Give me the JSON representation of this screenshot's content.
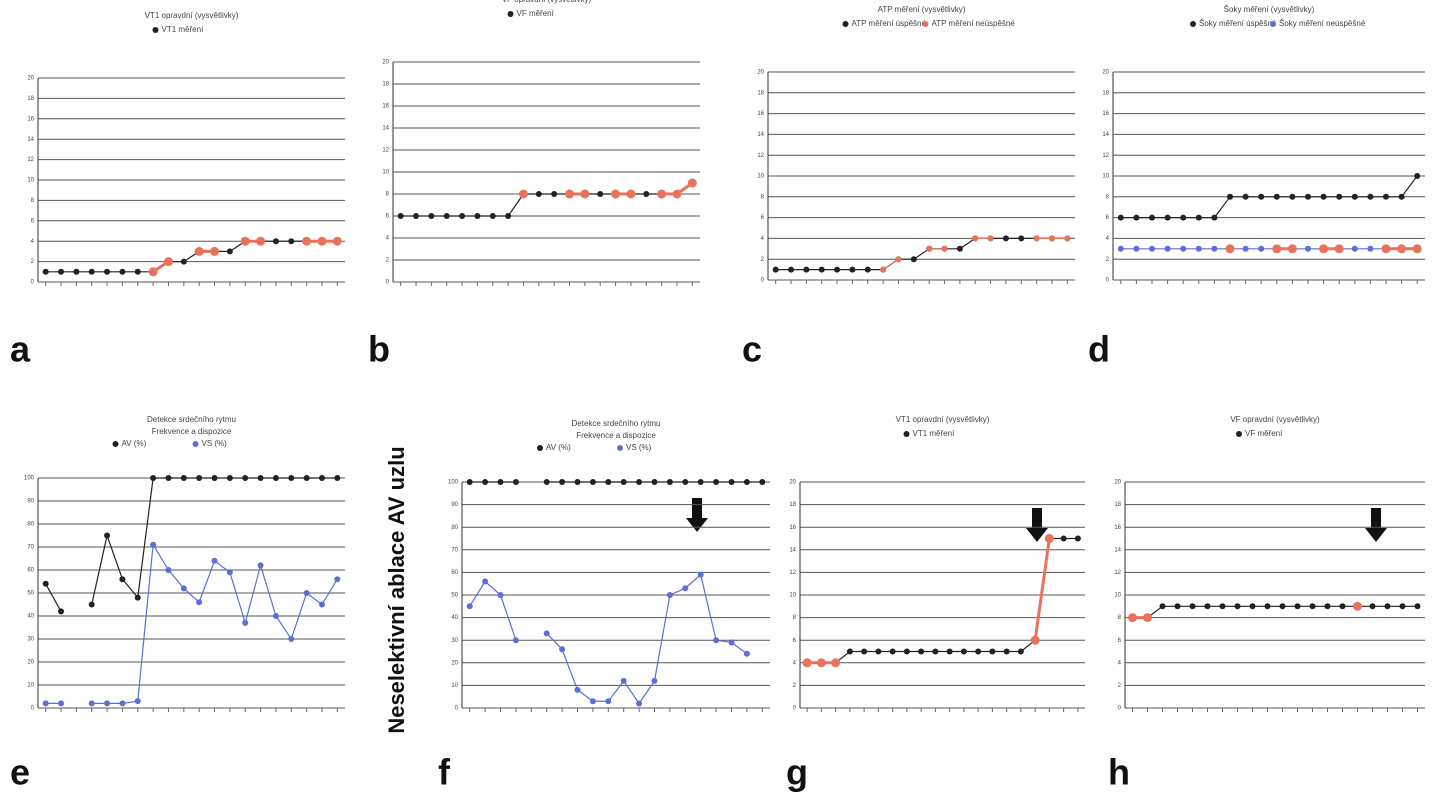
{
  "annotation": "Neselektivní ablace AV uzlu",
  "chart_data": [
    {
      "type": "line",
      "panel": "a",
      "title": "VT1 opravdní (vysvětlivky)",
      "ylim": [
        0,
        20
      ],
      "yticks": [
        0,
        2,
        4,
        6,
        8,
        10,
        12,
        14,
        16,
        18,
        20
      ],
      "grid": true,
      "categories": [
        null,
        null,
        null,
        null,
        null,
        null,
        null,
        null,
        null,
        null,
        null,
        null,
        null,
        null,
        null,
        null,
        null,
        null,
        null,
        null
      ],
      "series": [
        {
          "name": "VT1 měření",
          "color": "#222222",
          "values": [
            1,
            1,
            1,
            1,
            1,
            1,
            1,
            1,
            2,
            2,
            3,
            3,
            3,
            4,
            4,
            4,
            4,
            4,
            4,
            4
          ]
        },
        {
          "color": "#e8735a",
          "values": [
            null,
            null,
            null,
            null,
            null,
            null,
            null,
            1,
            2,
            null,
            3,
            3,
            null,
            4,
            4,
            null,
            null,
            4,
            4,
            4
          ]
        }
      ]
    },
    {
      "type": "line",
      "panel": "b",
      "title": "VF opravdní (vysvětlivky)",
      "ylim": [
        0,
        20
      ],
      "yticks": [
        0,
        2,
        4,
        6,
        8,
        10,
        12,
        14,
        16,
        18,
        20
      ],
      "grid": true,
      "categories": [
        null,
        null,
        null,
        null,
        null,
        null,
        null,
        null,
        null,
        null,
        null,
        null,
        null,
        null,
        null,
        null,
        null,
        null,
        null,
        null
      ],
      "series": [
        {
          "name": "VF měření",
          "color": "#222222",
          "values": [
            6,
            6,
            6,
            6,
            6,
            6,
            6,
            6,
            8,
            8,
            8,
            8,
            8,
            8,
            8,
            8,
            8,
            8,
            8,
            9
          ]
        },
        {
          "color": "#e8735a",
          "values": [
            null,
            null,
            null,
            null,
            null,
            null,
            null,
            null,
            8,
            null,
            null,
            8,
            8,
            null,
            8,
            8,
            null,
            8,
            8,
            9
          ]
        }
      ]
    },
    {
      "type": "line",
      "panel": "c",
      "title": "ATP měření (vysvětlivky)",
      "ylim": [
        0,
        20
      ],
      "yticks": [
        0,
        2,
        4,
        6,
        8,
        10,
        12,
        14,
        16,
        18,
        20
      ],
      "grid": true,
      "categories": [
        null,
        null,
        null,
        null,
        null,
        null,
        null,
        null,
        null,
        null,
        null,
        null,
        null,
        null,
        null,
        null,
        null,
        null,
        null,
        null
      ],
      "series": [
        {
          "name": "ATP měření úspěšné",
          "color": "#222222",
          "values": [
            1,
            1,
            1,
            1,
            1,
            1,
            1,
            1,
            2,
            2,
            3,
            3,
            3,
            4,
            4,
            4,
            4,
            4,
            4,
            4
          ]
        },
        {
          "name": "ATP měření neúspěšné",
          "color": "#e8735a",
          "values": [
            null,
            null,
            null,
            null,
            null,
            null,
            null,
            1,
            2,
            null,
            3,
            3,
            null,
            4,
            4,
            null,
            null,
            4,
            4,
            4
          ]
        }
      ]
    },
    {
      "type": "line",
      "panel": "d",
      "title": "Šoky měření (vysvětlivky)",
      "ylim": [
        0,
        20
      ],
      "yticks": [
        0,
        2,
        4,
        6,
        8,
        10,
        12,
        14,
        16,
        18,
        20
      ],
      "grid": true,
      "categories": [
        null,
        null,
        null,
        null,
        null,
        null,
        null,
        null,
        null,
        null,
        null,
        null,
        null,
        null,
        null,
        null,
        null,
        null,
        null,
        null
      ],
      "series": [
        {
          "name": "Šoky měření úspěšné",
          "color": "#222222",
          "values": [
            6,
            6,
            6,
            6,
            6,
            6,
            6,
            8,
            8,
            8,
            8,
            8,
            8,
            8,
            8,
            8,
            8,
            8,
            8,
            10
          ]
        },
        {
          "name": "Šoky měření neúspěšné",
          "color": "#5b6fd6",
          "values": [
            3,
            3,
            3,
            3,
            3,
            3,
            3,
            3,
            3,
            3,
            3,
            3,
            3,
            3,
            3,
            3,
            3,
            3,
            3,
            3
          ]
        },
        {
          "color": "#e8735a",
          "values": [
            null,
            null,
            null,
            null,
            null,
            null,
            null,
            3,
            null,
            null,
            3,
            3,
            null,
            3,
            3,
            null,
            null,
            3,
            3,
            3
          ]
        }
      ]
    },
    {
      "type": "line",
      "panel": "e",
      "title": "Detekce srdečního rytmu",
      "subtitle": "Frekvence a dispozice",
      "ylim": [
        0,
        100
      ],
      "yticks": [
        0,
        10,
        20,
        30,
        40,
        50,
        60,
        70,
        80,
        90,
        100
      ],
      "grid": true,
      "categories": [
        null,
        null,
        null,
        null,
        null,
        null,
        null,
        null,
        null,
        null,
        null,
        null,
        null,
        null,
        null,
        null,
        null,
        null,
        null,
        null
      ],
      "series": [
        {
          "name": "AV (%)",
          "color": "#222222",
          "values": [
            54,
            42,
            null,
            45,
            75,
            56,
            48,
            100,
            100,
            100,
            100,
            100,
            100,
            100,
            100,
            100,
            100,
            100,
            100,
            100
          ]
        },
        {
          "name": "VS (%)",
          "color": "#5b6fd6",
          "values": [
            2,
            2,
            null,
            2,
            2,
            2,
            3,
            71,
            60,
            52,
            46,
            64,
            59,
            37,
            62,
            40,
            30,
            50,
            45,
            56
          ]
        }
      ]
    },
    {
      "type": "line",
      "panel": "f",
      "title": "Detekce srdečního rytmu",
      "subtitle": "Frekvence a dispozice",
      "ylim": [
        0,
        100
      ],
      "yticks": [
        0,
        10,
        20,
        30,
        40,
        50,
        60,
        70,
        80,
        90,
        100
      ],
      "grid": true,
      "categories": [
        null,
        null,
        null,
        null,
        null,
        null,
        null,
        null,
        null,
        null,
        null,
        null,
        null,
        null,
        null,
        null,
        null,
        null,
        null,
        null
      ],
      "series": [
        {
          "name": "AV (%)",
          "color": "#222222",
          "values": [
            100,
            100,
            100,
            100,
            null,
            100,
            100,
            100,
            100,
            100,
            100,
            100,
            100,
            100,
            100,
            100,
            100,
            100,
            100,
            100
          ]
        },
        {
          "name": "VS (%)",
          "color": "#5b6fd6",
          "values": [
            45,
            56,
            50,
            30,
            null,
            33,
            26,
            8,
            3,
            3,
            12,
            2,
            12,
            50,
            53,
            59,
            30,
            29,
            24,
            null
          ]
        }
      ]
    },
    {
      "type": "line",
      "panel": "g",
      "title": "VT1 opravdní (vysvětlivky)",
      "ylim": [
        0,
        20
      ],
      "yticks": [
        0,
        2,
        4,
        6,
        8,
        10,
        12,
        14,
        16,
        18,
        20
      ],
      "grid": true,
      "categories": [
        null,
        null,
        null,
        null,
        null,
        null,
        null,
        null,
        null,
        null,
        null,
        null,
        null,
        null,
        null,
        null,
        null,
        null,
        null,
        null
      ],
      "series": [
        {
          "name": "VT1 měření",
          "color": "#222222",
          "values": [
            4,
            4,
            4,
            5,
            5,
            5,
            5,
            5,
            5,
            5,
            5,
            5,
            5,
            5,
            5,
            5,
            6,
            15,
            15,
            15
          ]
        },
        {
          "color": "#e8735a",
          "values": [
            4,
            4,
            4,
            null,
            null,
            null,
            null,
            null,
            null,
            null,
            null,
            null,
            null,
            null,
            null,
            null,
            6,
            15,
            null,
            null
          ]
        }
      ]
    },
    {
      "type": "line",
      "panel": "h",
      "title": "VF opravdní (vysvětlivky)",
      "ylim": [
        0,
        20
      ],
      "yticks": [
        0,
        2,
        4,
        6,
        8,
        10,
        12,
        14,
        16,
        18,
        20
      ],
      "grid": true,
      "categories": [
        null,
        null,
        null,
        null,
        null,
        null,
        null,
        null,
        null,
        null,
        null,
        null,
        null,
        null,
        null,
        null,
        null,
        null,
        null,
        null
      ],
      "series": [
        {
          "name": "VF měření",
          "color": "#222222",
          "values": [
            8,
            8,
            9,
            9,
            9,
            9,
            9,
            9,
            9,
            9,
            9,
            9,
            9,
            9,
            9,
            9,
            9,
            9,
            9,
            9
          ]
        },
        {
          "color": "#e8735a",
          "values": [
            8,
            8,
            null,
            null,
            null,
            null,
            null,
            null,
            null,
            null,
            null,
            null,
            null,
            null,
            null,
            9,
            null,
            null,
            null,
            null
          ]
        }
      ]
    }
  ]
}
